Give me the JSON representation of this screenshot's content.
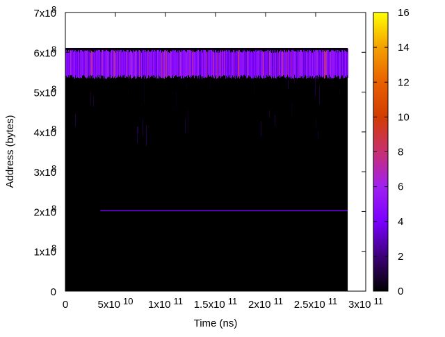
{
  "chart_data": {
    "type": "heatmap",
    "title": "",
    "xlabel": "Time (ns)",
    "ylabel": "Address (bytes)",
    "x_ticks": [
      {
        "value": 0,
        "base": "0",
        "exp": ""
      },
      {
        "value": 50000000000,
        "base": "5x10",
        "exp": "10"
      },
      {
        "value": 100000000000,
        "base": "1x10",
        "exp": "11"
      },
      {
        "value": 150000000000,
        "base": "1.5x10",
        "exp": "11"
      },
      {
        "value": 200000000000,
        "base": "2x10",
        "exp": "11"
      },
      {
        "value": 250000000000,
        "base": "2.5x10",
        "exp": "11"
      },
      {
        "value": 300000000000,
        "base": "3x10",
        "exp": "11"
      }
    ],
    "y_ticks": [
      {
        "value": 0,
        "base": "0",
        "exp": ""
      },
      {
        "value": 100000000,
        "base": "1x10",
        "exp": "8"
      },
      {
        "value": 200000000,
        "base": "2x10",
        "exp": "8"
      },
      {
        "value": 300000000,
        "base": "3x10",
        "exp": "8"
      },
      {
        "value": 400000000,
        "base": "4x10",
        "exp": "8"
      },
      {
        "value": 500000000,
        "base": "5x10",
        "exp": "8"
      },
      {
        "value": 600000000,
        "base": "6x10",
        "exp": "8"
      },
      {
        "value": 700000000,
        "base": "7x10",
        "exp": "8"
      }
    ],
    "xlim": [
      0,
      300000000000
    ],
    "ylim": [
      0,
      700000000
    ],
    "colorbar": {
      "range": [
        0,
        16
      ],
      "ticks": [
        "0",
        "2",
        "4",
        "6",
        "8",
        "10",
        "12",
        "14",
        "16"
      ],
      "palette": [
        "#000000",
        "#3d0078",
        "#7a00ff",
        "#a020f0",
        "#c83070",
        "#d23c00",
        "#e86000",
        "#f4a000",
        "#ffff00"
      ]
    },
    "data_extent": {
      "x_min": 0,
      "x_max": 282000000000,
      "y_min": 0,
      "y_max": 611000000
    },
    "hot_band": {
      "y_min": 540000000,
      "y_max": 611000000,
      "typical_value": 4.5,
      "peak_value": 8
    },
    "horizontal_line": {
      "y": 202000000,
      "x_start": 35000000000,
      "x_end": 282000000000,
      "value": 4
    },
    "background_value": 0,
    "grid": false
  }
}
